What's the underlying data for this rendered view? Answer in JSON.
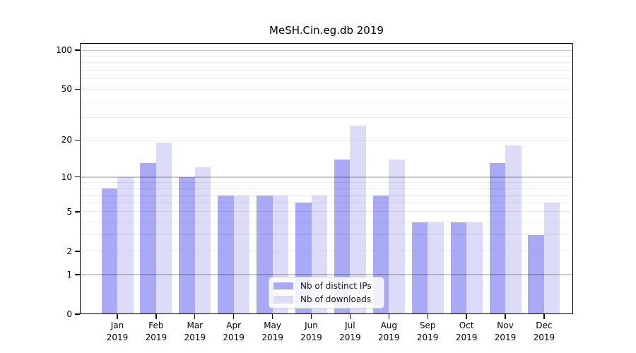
{
  "chart_data": {
    "type": "bar",
    "title": "MeSH.Cin.eg.db 2019",
    "categories": [
      "Jan",
      "Feb",
      "Mar",
      "Apr",
      "May",
      "Jun",
      "Jul",
      "Aug",
      "Sep",
      "Oct",
      "Nov",
      "Dec"
    ],
    "x_year_label": "2019",
    "series": [
      {
        "name": "Nb of distinct IPs",
        "color": "#a9a9f5",
        "values": [
          8,
          13,
          10,
          7,
          7,
          6,
          14,
          7,
          4,
          4,
          13,
          3
        ]
      },
      {
        "name": "Nb of downloads",
        "color": "#dcdcf9",
        "values": [
          10,
          19,
          12,
          7,
          7,
          7,
          26,
          14,
          4,
          4,
          18,
          6
        ]
      }
    ],
    "yscale": "log1p",
    "ylim": [
      0,
      113.4
    ],
    "y_ticks": [
      0,
      1,
      2,
      5,
      10,
      20,
      50,
      100
    ],
    "grid": {
      "major_values": [
        1,
        10,
        100
      ],
      "minor_values": [
        2,
        3,
        4,
        5,
        6,
        7,
        8,
        9,
        20,
        30,
        40,
        50,
        60,
        70,
        80,
        90
      ],
      "major_color": "rgba(0,0,0,0.21)",
      "minor_color": "rgba(0,0,0,0.075)"
    },
    "legend": {
      "position": "lower center"
    },
    "colors": {
      "background": "#ffffff",
      "spine": "#000000"
    }
  }
}
